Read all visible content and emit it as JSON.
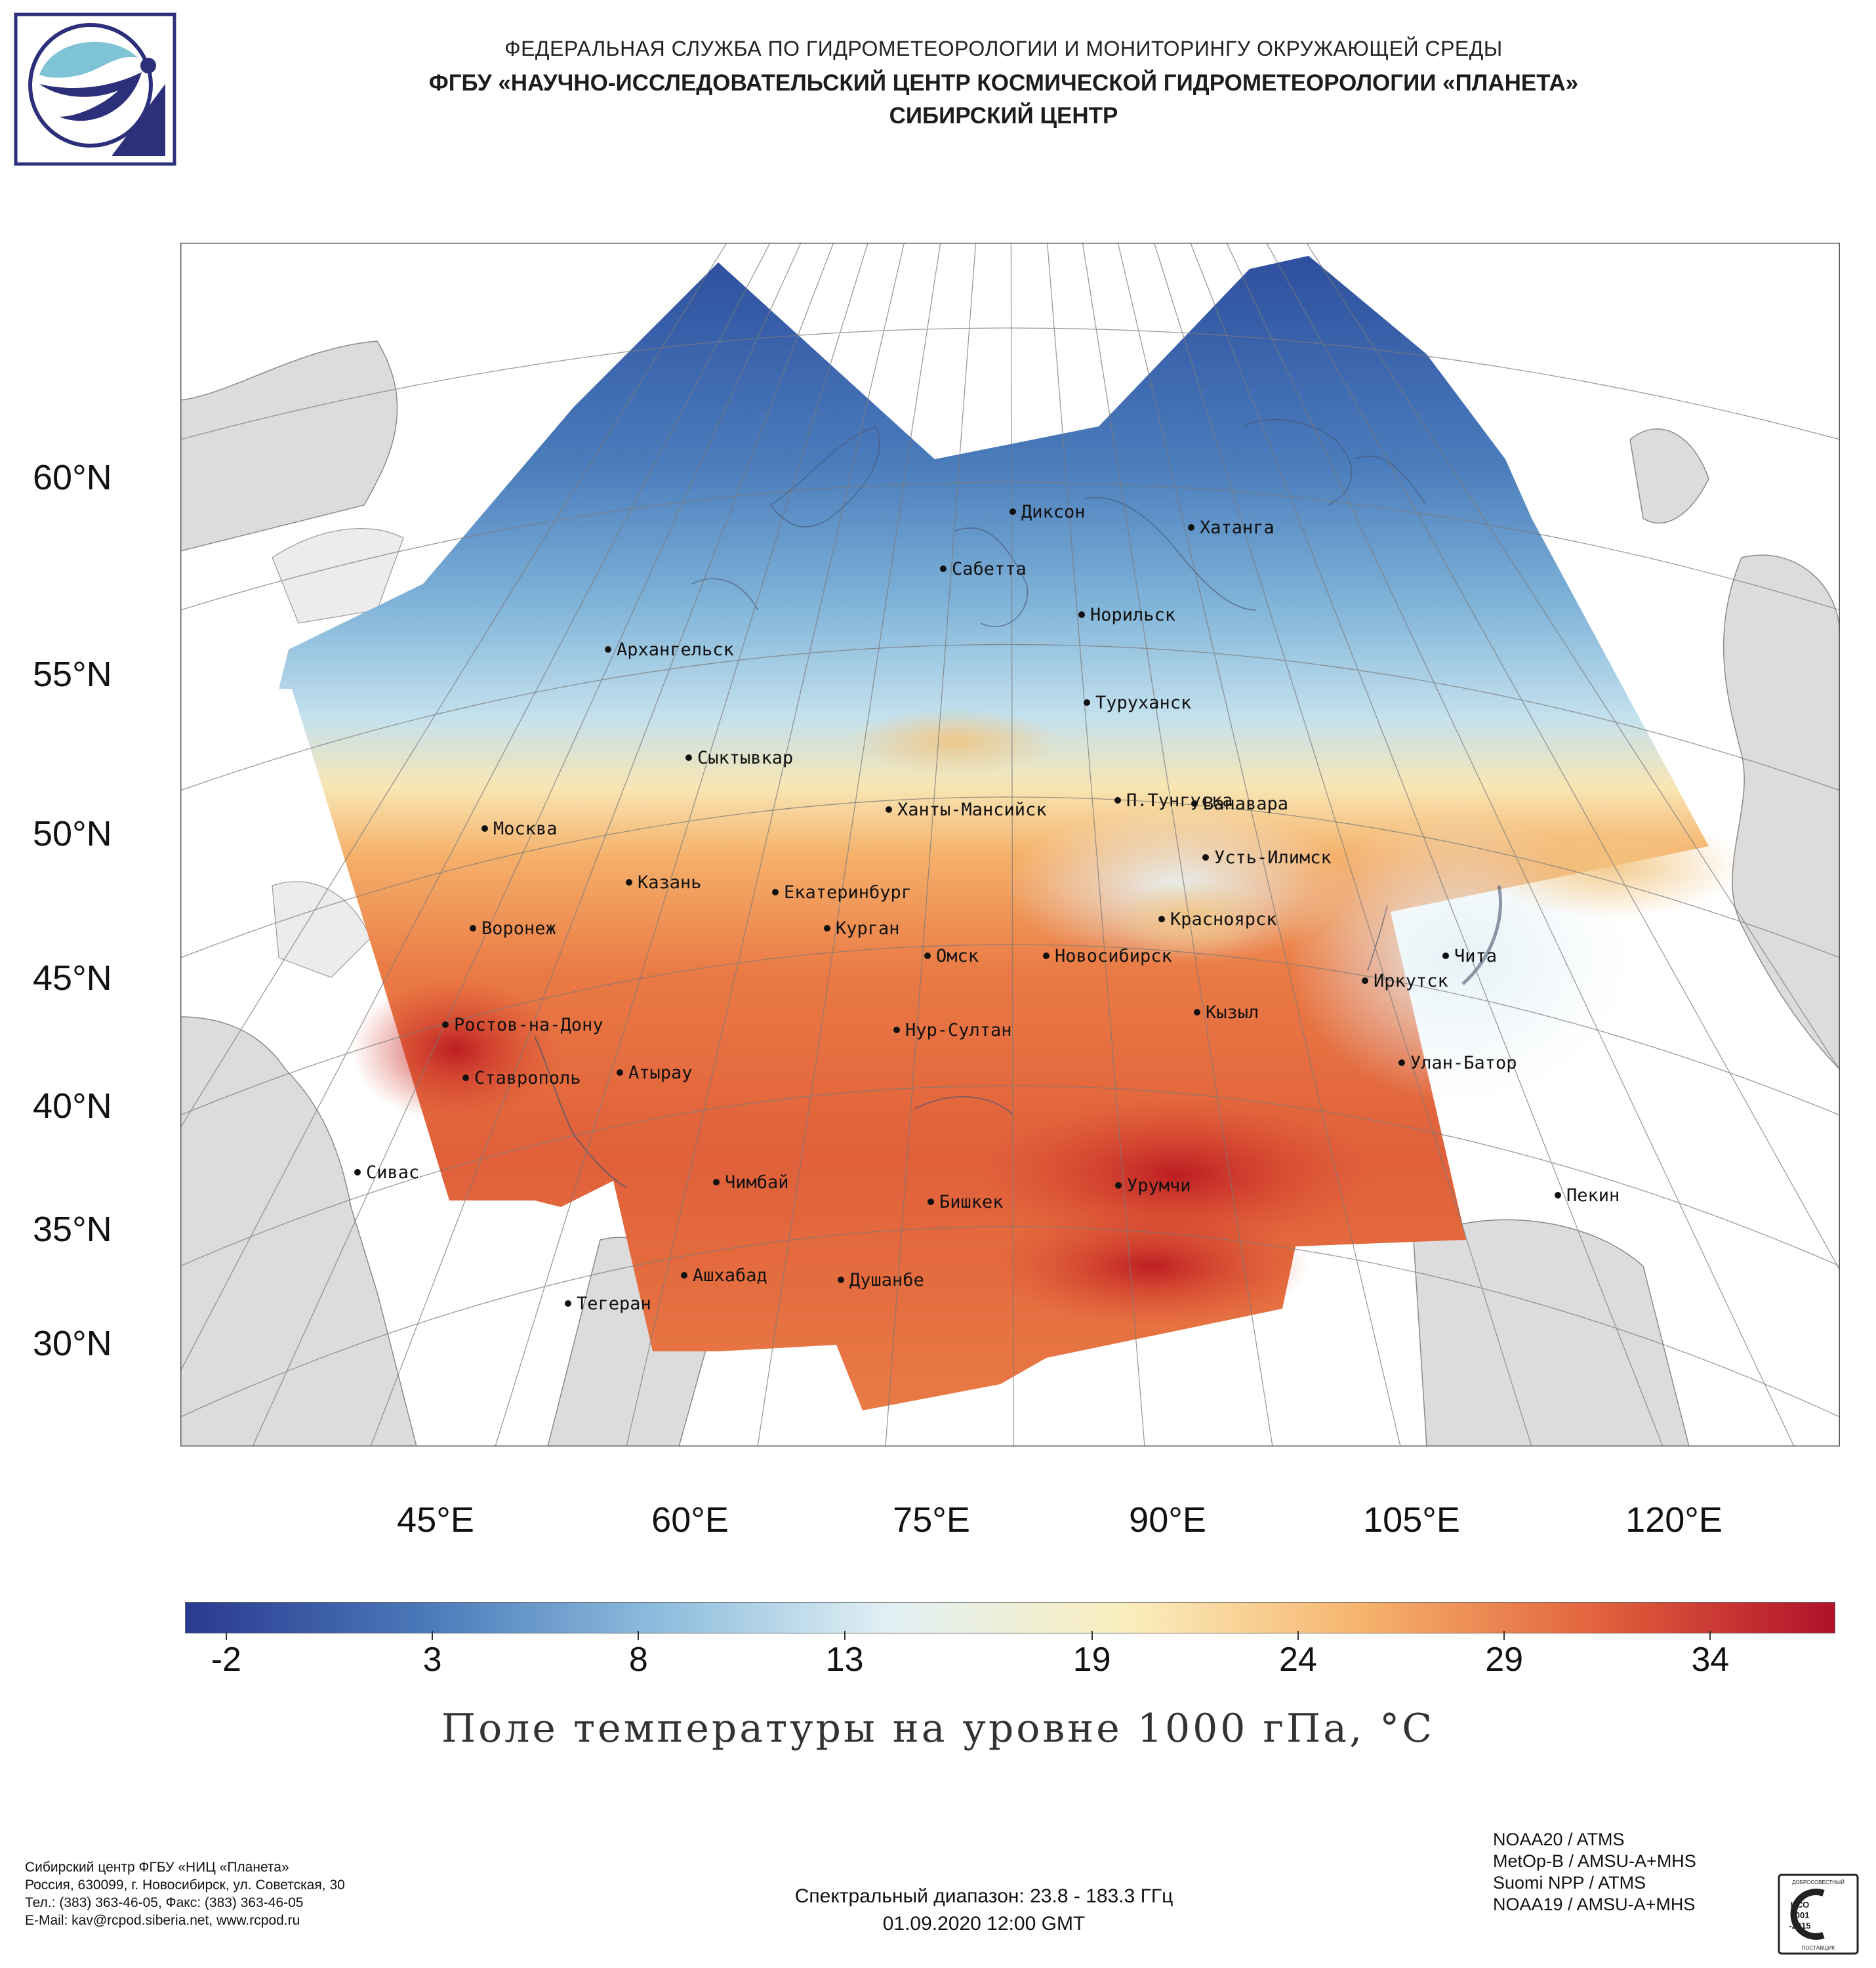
{
  "header": {
    "line1": "ФЕДЕРАЛЬНАЯ СЛУЖБА ПО ГИДРОМЕТЕОРОЛОГИИ И МОНИТОРИНГУ ОКРУЖАЮЩЕЙ СРЕДЫ",
    "line2": "ФГБУ «НАУЧНО-ИССЛЕДОВАТЕЛЬСКИЙ ЦЕНТР КОСМИЧЕСКОЙ ГИДРОМЕТЕОРОЛОГИИ «ПЛАНЕТА»",
    "line3": "СИБИРСКИЙ ЦЕНТР"
  },
  "map": {
    "latitude_labels": [
      "60°N",
      "55°N",
      "50°N",
      "45°N",
      "40°N",
      "35°N",
      "30°N"
    ],
    "longitude_labels": [
      "45°E",
      "60°E",
      "75°E",
      "90°E",
      "105°E",
      "120°E"
    ],
    "cities": [
      "Диксон",
      "Хатанга",
      "Сабетта",
      "Норильск",
      "Архангельск",
      "Туруханск",
      "Сыктывкар",
      "П.Тунгуска",
      "Ванавара",
      "Ханты-Мансийск",
      "Москва",
      "Усть-Илимск",
      "Казань",
      "Екатеринбург",
      "Красноярск",
      "Воронеж",
      "Курган",
      "Омск",
      "Новосибирск",
      "Чита",
      "Иркутск",
      "Кызыл",
      "Ростов-на-Дону",
      "Нур-Султан",
      "Улан-Батор",
      "Атырау",
      "Ставрополь",
      "Сивас",
      "Урумчи",
      "Чимбай",
      "Пекин",
      "Бишкек",
      "Ашхабад",
      "Душанбе",
      "Тегеран"
    ]
  },
  "colorbar": {
    "min": -3,
    "max": 37,
    "tick_labels": [
      "-2",
      "3",
      "8",
      "13",
      "19",
      "24",
      "29",
      "34"
    ],
    "colors": [
      "#2a3990",
      "#4a78b9",
      "#8cbcdd",
      "#e2f0f4",
      "#faeebd",
      "#f6b36d",
      "#e2613c",
      "#b0112a"
    ],
    "title": "Поле температуры на уровне 1000 гПа, °С"
  },
  "footer": {
    "org_lines": [
      "Сибирский центр ФГБУ «НИЦ «Планета»",
      "Россия, 630099, г. Новосибирск, ул. Советская, 30",
      "Тел.: (383) 363-46-05, Факс: (383) 363-46-05",
      "E-Mail: kav@rcpod.siberia.net, www.rcpod.ru"
    ],
    "spectral": "Спектральный диапазон: 23.8 - 183.3 ГГц",
    "datetime": "01.09.2020 12:00 GMT",
    "satellites": [
      "NOAA20 / ATMS",
      "MetOp-B / AMSU-A+MHS",
      "Suomi NPP / ATMS",
      "NOAA19 / AMSU-A+MHS"
    ],
    "iso_text": [
      "ДОБРОСОВЕСТНЫЙ",
      "ИСО",
      "9001",
      "-2015",
      "ПОСТАВЩИК"
    ]
  }
}
